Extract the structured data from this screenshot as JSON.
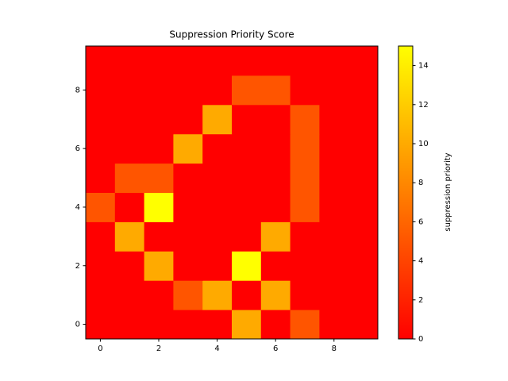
{
  "chart_data": {
    "type": "heatmap",
    "title": "Suppression Priority Score",
    "colormap": "autumn",
    "values": [
      [
        0,
        0,
        0,
        0,
        0,
        10,
        0,
        5,
        0,
        0
      ],
      [
        0,
        0,
        0,
        5,
        10,
        0,
        10,
        0,
        0,
        0
      ],
      [
        0,
        0,
        10,
        0,
        0,
        15,
        0,
        0,
        0,
        0
      ],
      [
        0,
        10,
        0,
        0,
        0,
        0,
        10,
        0,
        0,
        0
      ],
      [
        5,
        0,
        15,
        0,
        0,
        0,
        0,
        5,
        0,
        0
      ],
      [
        0,
        5,
        5,
        0,
        0,
        0,
        0,
        5,
        0,
        0
      ],
      [
        0,
        0,
        0,
        10,
        0,
        0,
        0,
        5,
        0,
        0
      ],
      [
        0,
        0,
        0,
        0,
        10,
        0,
        0,
        5,
        0,
        0
      ],
      [
        0,
        0,
        0,
        0,
        0,
        5,
        5,
        0,
        0,
        0
      ],
      [
        0,
        0,
        0,
        0,
        0,
        0,
        0,
        0,
        0,
        0
      ]
    ],
    "xlim": [
      -0.5,
      9.5
    ],
    "ylim": [
      -0.5,
      9.5
    ],
    "xticks": [
      0,
      2,
      4,
      6,
      8
    ],
    "yticks": [
      0,
      2,
      4,
      6,
      8
    ],
    "colorbar_label": "suppression priority",
    "clim": [
      0,
      15
    ],
    "cticks": [
      0,
      2,
      4,
      6,
      8,
      10,
      12,
      14
    ]
  }
}
